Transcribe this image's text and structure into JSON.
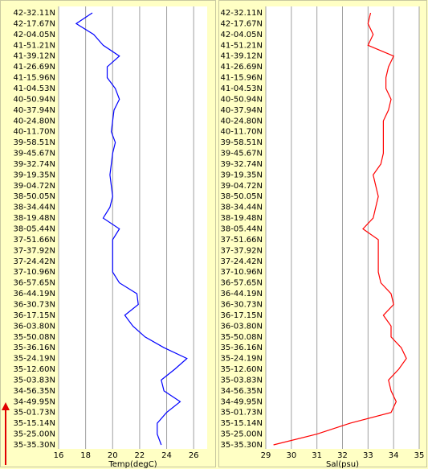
{
  "chart_data": [
    {
      "type": "line",
      "orientation": "horizontal",
      "xlabel": "Temp(degC)",
      "xlim": [
        16,
        27
      ],
      "xticks": [
        16,
        18,
        20,
        22,
        24,
        26
      ],
      "grid": true,
      "categories": [
        "42-32.11N",
        "42-17.67N",
        "42-04.05N",
        "41-51.21N",
        "41-39.12N",
        "41-26.69N",
        "41-15.96N",
        "41-04.53N",
        "40-50.94N",
        "40-37.94N",
        "40-24.80N",
        "40-11.70N",
        "39-58.51N",
        "39-45.67N",
        "39-32.74N",
        "39-19.35N",
        "39-04.72N",
        "38-50.05N",
        "38-34.44N",
        "38-19.48N",
        "38-05.44N",
        "37-51.66N",
        "37-37.92N",
        "37-24.42N",
        "37-10.96N",
        "36-57.65N",
        "36-44.19N",
        "36-30.73N",
        "36-17.15N",
        "36-03.80N",
        "35-50.08N",
        "35-36.16N",
        "35-24.19N",
        "35-12.60N",
        "35-03.83N",
        "34-56.35N",
        "34-49.95N",
        "35-01.73N",
        "35-15.14N",
        "35-25.00N",
        "35-35.30N"
      ],
      "series": [
        {
          "color": "#0000ff",
          "values": [
            18.5,
            17.3,
            18.6,
            19.3,
            20.5,
            19.6,
            19.6,
            20.2,
            20.5,
            20.1,
            20.0,
            19.9,
            20.2,
            20.0,
            19.9,
            19.8,
            19.9,
            20.0,
            19.8,
            19.3,
            20.5,
            20.0,
            20.0,
            20.0,
            20.0,
            20.5,
            21.8,
            21.9,
            20.9,
            21.5,
            22.4,
            23.8,
            25.5,
            24.6,
            23.6,
            23.8,
            25.0,
            24.0,
            23.3,
            23.3,
            23.6
          ]
        }
      ]
    },
    {
      "type": "line",
      "orientation": "horizontal",
      "xlabel": "Sal(psu)",
      "xlim": [
        29,
        35
      ],
      "xticks": [
        29,
        30,
        31,
        32,
        33,
        34,
        35
      ],
      "grid": true,
      "categories": [
        "42-32.11N",
        "42-17.67N",
        "42-04.05N",
        "41-51.21N",
        "41-39.12N",
        "41-26.69N",
        "41-15.96N",
        "41-04.53N",
        "40-50.94N",
        "40-37.94N",
        "40-24.80N",
        "40-11.70N",
        "39-58.51N",
        "39-45.67N",
        "39-32.74N",
        "39-19.35N",
        "39-04.72N",
        "38-50.05N",
        "38-34.44N",
        "38-19.48N",
        "38-05.44N",
        "37-51.66N",
        "37-37.92N",
        "37-24.42N",
        "37-10.96N",
        "36-57.65N",
        "36-44.19N",
        "36-30.73N",
        "36-17.15N",
        "36-03.80N",
        "35-50.08N",
        "35-36.16N",
        "35-24.19N",
        "35-12.60N",
        "35-03.83N",
        "34-56.35N",
        "34-49.95N",
        "35-01.73N",
        "35-15.14N",
        "35-25.00N",
        "35-35.30N"
      ],
      "series": [
        {
          "color": "#ff0000",
          "values": [
            33.1,
            33.0,
            33.2,
            33.0,
            34.0,
            33.8,
            33.7,
            33.7,
            33.9,
            33.8,
            33.6,
            33.6,
            33.6,
            33.6,
            33.5,
            33.2,
            33.3,
            33.4,
            33.3,
            33.2,
            32.8,
            33.4,
            33.4,
            33.4,
            33.4,
            33.5,
            33.9,
            34.0,
            33.6,
            33.9,
            33.9,
            34.3,
            34.5,
            34.2,
            33.8,
            33.9,
            34.1,
            33.9,
            32.3,
            31.0,
            29.3
          ]
        }
      ]
    }
  ]
}
